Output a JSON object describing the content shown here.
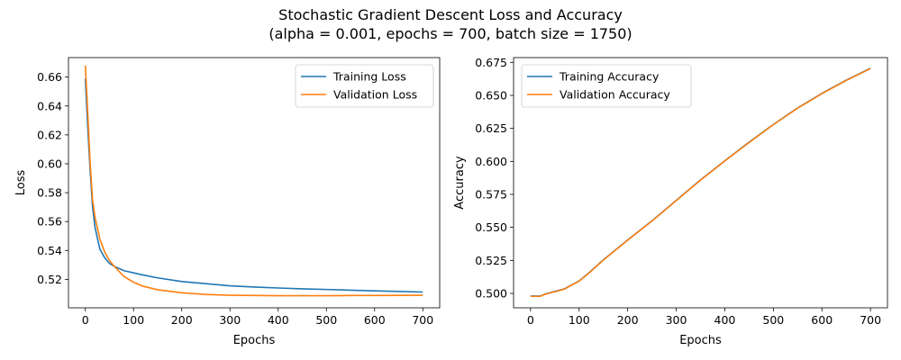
{
  "figure": {
    "title_line1": "Stochastic Gradient Descent Loss and Accuracy",
    "title_line2": "(alpha = 0.001, epochs = 700, batch size = 1750)"
  },
  "colors": {
    "series1": "#1f77b4",
    "series2": "#ff7f0e"
  },
  "chart_data": [
    {
      "type": "line",
      "xlabel": "Epochs",
      "ylabel": "Loss",
      "xlim": [
        -35,
        735
      ],
      "ylim": [
        0.5003,
        0.6735
      ],
      "xticks": [
        0,
        100,
        200,
        300,
        400,
        500,
        600,
        700
      ],
      "yticks": [
        0.52,
        0.54,
        0.56,
        0.58,
        0.6,
        0.62,
        0.64,
        0.66
      ],
      "yticks_text": [
        "0.52",
        "0.54",
        "0.56",
        "0.58",
        "0.60",
        "0.62",
        "0.64",
        "0.66"
      ],
      "grid": false,
      "legend": "upper-right",
      "series": [
        {
          "name": "Training Loss",
          "x": [
            0,
            5,
            10,
            15,
            20,
            30,
            40,
            50,
            60,
            80,
            100,
            120,
            150,
            200,
            250,
            300,
            350,
            400,
            450,
            500,
            550,
            600,
            650,
            700
          ],
          "y": [
            0.659,
            0.625,
            0.595,
            0.57,
            0.556,
            0.541,
            0.535,
            0.531,
            0.529,
            0.526,
            0.5245,
            0.523,
            0.521,
            0.5185,
            0.517,
            0.5155,
            0.5147,
            0.514,
            0.5134,
            0.513,
            0.5125,
            0.512,
            0.5116,
            0.5112
          ]
        },
        {
          "name": "Validation Loss",
          "x": [
            0,
            5,
            10,
            15,
            20,
            30,
            40,
            50,
            60,
            80,
            100,
            120,
            150,
            200,
            250,
            300,
            350,
            400,
            450,
            500,
            550,
            600,
            650,
            700
          ],
          "y": [
            0.668,
            0.635,
            0.6,
            0.575,
            0.563,
            0.548,
            0.539,
            0.533,
            0.529,
            0.522,
            0.518,
            0.5152,
            0.5128,
            0.5107,
            0.5095,
            0.509,
            0.5088,
            0.5087,
            0.5087,
            0.5087,
            0.5088,
            0.5088,
            0.5089,
            0.509
          ]
        }
      ]
    },
    {
      "type": "line",
      "xlabel": "Epochs",
      "ylabel": "Accuracy",
      "xlim": [
        -35,
        735
      ],
      "ylim": [
        0.4891,
        0.6786
      ],
      "xticks": [
        0,
        100,
        200,
        300,
        400,
        500,
        600,
        700
      ],
      "yticks": [
        0.5,
        0.525,
        0.55,
        0.575,
        0.6,
        0.625,
        0.65,
        0.675
      ],
      "yticks_text": [
        "0.500",
        "0.525",
        "0.550",
        "0.575",
        "0.600",
        "0.625",
        "0.650",
        "0.675"
      ],
      "grid": false,
      "legend": "upper-left",
      "series": [
        {
          "name": "Training Accuracy",
          "x": [
            0,
            10,
            20,
            30,
            50,
            70,
            80,
            100,
            120,
            150,
            200,
            250,
            300,
            350,
            400,
            450,
            500,
            550,
            600,
            650,
            700
          ],
          "y": [
            0.498,
            0.498,
            0.498,
            0.4995,
            0.5015,
            0.5035,
            0.5055,
            0.5095,
            0.5155,
            0.5255,
            0.5405,
            0.555,
            0.5705,
            0.586,
            0.6005,
            0.6145,
            0.628,
            0.6405,
            0.6515,
            0.6615,
            0.6705
          ]
        },
        {
          "name": "Validation Accuracy",
          "x": [
            0,
            10,
            20,
            30,
            50,
            70,
            80,
            100,
            120,
            150,
            200,
            250,
            300,
            350,
            400,
            450,
            500,
            550,
            600,
            650,
            700
          ],
          "y": [
            0.4978,
            0.4978,
            0.4978,
            0.4993,
            0.5013,
            0.5033,
            0.5053,
            0.5093,
            0.5153,
            0.5253,
            0.5403,
            0.5548,
            0.5703,
            0.5858,
            0.6003,
            0.6143,
            0.6278,
            0.6403,
            0.6513,
            0.6613,
            0.6703
          ]
        }
      ]
    }
  ]
}
